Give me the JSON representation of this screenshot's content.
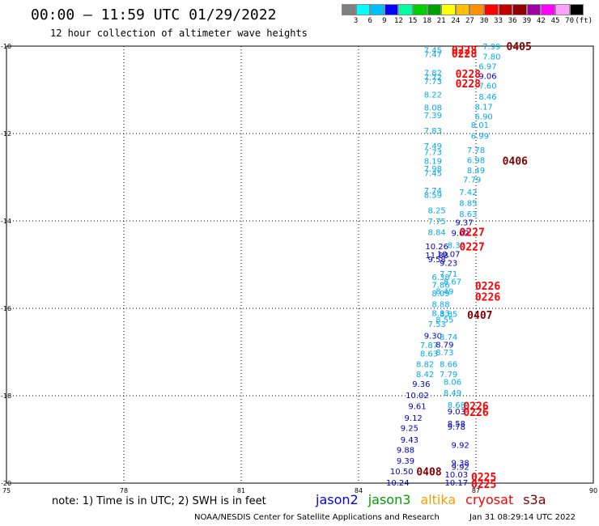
{
  "title": "00:00 – 11:59 UTC 01/29/2022",
  "subtitle": "12 hour collection of altimeter wave heights",
  "colorbar": {
    "colors": [
      "#808080",
      "#00ffff",
      "#00bfff",
      "#0000ff",
      "#00ffa0",
      "#00d000",
      "#00a000",
      "#ffff00",
      "#ffc000",
      "#ff9000",
      "#ff0000",
      "#c00000",
      "#900000",
      "#a000a0",
      "#ff00ff",
      "#ffa0ff",
      "#000000"
    ],
    "labels": [
      "3",
      "6",
      "9",
      "12",
      "15",
      "18",
      "21",
      "24",
      "27",
      "30",
      "33",
      "36",
      "39",
      "42",
      "45",
      "70",
      "(ft)"
    ]
  },
  "map_frame": {
    "lon_min": 75,
    "lon_max": 90,
    "lat_min": -20,
    "lat_max": -10
  },
  "axes": {
    "lon_ticks": [
      "75",
      "78",
      "81",
      "84",
      "87",
      "90"
    ],
    "lat_ticks": [
      "-10",
      "-12",
      "-14",
      "-16",
      "-18",
      "-20"
    ]
  },
  "chart_data": {
    "type": "map",
    "units": "ft",
    "satellite_colors": {
      "jason2": "#0000ff",
      "jason3": "#00a000",
      "altika": "#ff9900",
      "cryosat": "#ff0000",
      "s3a": "#800000",
      "track_cyan": "#00aaee",
      "track_blue": "#0000cc",
      "track_darkblue": "#000090"
    },
    "observations": [
      {
        "text": "7.99",
        "lon": 87.4,
        "lat": -10.0,
        "color": "#00aaee"
      },
      {
        "text": "7.45",
        "lon": 85.9,
        "lat": -10.08,
        "color": "#00aaee"
      },
      {
        "text": "7.47",
        "lon": 85.9,
        "lat": -10.18,
        "color": "#00aaee"
      },
      {
        "text": "7.80",
        "lon": 87.4,
        "lat": -10.23,
        "color": "#00aaee"
      },
      {
        "text": "6.97",
        "lon": 87.3,
        "lat": -10.45,
        "color": "#00aaee"
      },
      {
        "text": "7.82",
        "lon": 85.9,
        "lat": -10.6,
        "color": "#00aaee"
      },
      {
        "text": "9.06",
        "lon": 87.3,
        "lat": -10.68,
        "color": "#0000cc"
      },
      {
        "text": "7.72",
        "lon": 85.9,
        "lat": -10.7,
        "color": "#00aaee"
      },
      {
        "text": "7.73",
        "lon": 85.9,
        "lat": -10.8,
        "color": "#00aaee"
      },
      {
        "text": "7.60",
        "lon": 87.3,
        "lat": -10.9,
        "color": "#00aaee"
      },
      {
        "text": "8.22",
        "lon": 85.9,
        "lat": -11.1,
        "color": "#00aaee"
      },
      {
        "text": "8.46",
        "lon": 87.3,
        "lat": -11.15,
        "color": "#00aaee"
      },
      {
        "text": "8.08",
        "lon": 85.9,
        "lat": -11.4,
        "color": "#00aaee"
      },
      {
        "text": "8.17",
        "lon": 87.2,
        "lat": -11.38,
        "color": "#00aaee"
      },
      {
        "text": "7.39",
        "lon": 85.9,
        "lat": -11.57,
        "color": "#00aaee"
      },
      {
        "text": "6.90",
        "lon": 87.2,
        "lat": -11.6,
        "color": "#00aaee"
      },
      {
        "text": "8.01",
        "lon": 87.1,
        "lat": -11.8,
        "color": "#00aaee"
      },
      {
        "text": "7.83",
        "lon": 85.9,
        "lat": -11.93,
        "color": "#00aaee"
      },
      {
        "text": "6.99",
        "lon": 87.1,
        "lat": -12.05,
        "color": "#00aaee"
      },
      {
        "text": "7.49",
        "lon": 85.9,
        "lat": -12.28,
        "color": "#00aaee"
      },
      {
        "text": "7.78",
        "lon": 87.0,
        "lat": -12.37,
        "color": "#00aaee"
      },
      {
        "text": "7.73",
        "lon": 85.9,
        "lat": -12.42,
        "color": "#00aaee"
      },
      {
        "text": "8.19",
        "lon": 85.9,
        "lat": -12.62,
        "color": "#00aaee"
      },
      {
        "text": "6.98",
        "lon": 87.0,
        "lat": -12.6,
        "color": "#00aaee"
      },
      {
        "text": "7.98",
        "lon": 85.9,
        "lat": -12.8,
        "color": "#00aaee"
      },
      {
        "text": "8.49",
        "lon": 87.0,
        "lat": -12.83,
        "color": "#00aaee"
      },
      {
        "text": "7.45",
        "lon": 85.9,
        "lat": -12.9,
        "color": "#00aaee"
      },
      {
        "text": "7.79",
        "lon": 86.9,
        "lat": -13.05,
        "color": "#00aaee"
      },
      {
        "text": "7.74",
        "lon": 85.9,
        "lat": -13.3,
        "color": "#00aaee"
      },
      {
        "text": "7.42",
        "lon": 86.8,
        "lat": -13.33,
        "color": "#00aaee"
      },
      {
        "text": "8.59",
        "lon": 85.9,
        "lat": -13.4,
        "color": "#00aaee"
      },
      {
        "text": "8.85",
        "lon": 86.8,
        "lat": -13.58,
        "color": "#00aaee"
      },
      {
        "text": "8.25",
        "lon": 86.0,
        "lat": -13.75,
        "color": "#00aaee"
      },
      {
        "text": "8.63",
        "lon": 86.8,
        "lat": -13.83,
        "color": "#00aaee"
      },
      {
        "text": "7.75",
        "lon": 86.0,
        "lat": -14.0,
        "color": "#00aaee"
      },
      {
        "text": "9.37",
        "lon": 86.7,
        "lat": -14.03,
        "color": "#0000cc"
      },
      {
        "text": "8.84",
        "lon": 86.0,
        "lat": -14.25,
        "color": "#00aaee"
      },
      {
        "text": "9.02",
        "lon": 86.6,
        "lat": -14.27,
        "color": "#0000cc"
      },
      {
        "text": "10.26",
        "lon": 86.0,
        "lat": -14.57,
        "color": "#0000cc"
      },
      {
        "text": "8.35",
        "lon": 86.5,
        "lat": -14.55,
        "color": "#00aaee"
      },
      {
        "text": "10.07",
        "lon": 86.3,
        "lat": -14.75,
        "color": "#0000cc"
      },
      {
        "text": "11.88",
        "lon": 86.0,
        "lat": -14.78,
        "color": "#0000cc"
      },
      {
        "text": "9.58",
        "lon": 86.0,
        "lat": -14.87,
        "color": "#0000cc"
      },
      {
        "text": "9.23",
        "lon": 86.3,
        "lat": -14.95,
        "color": "#0000cc"
      },
      {
        "text": "7.71",
        "lon": 86.3,
        "lat": -15.2,
        "color": "#00aaee"
      },
      {
        "text": "6.38",
        "lon": 86.1,
        "lat": -15.28,
        "color": "#00aaee"
      },
      {
        "text": "8.67",
        "lon": 86.4,
        "lat": -15.38,
        "color": "#00aaee"
      },
      {
        "text": "7.86",
        "lon": 86.1,
        "lat": -15.45,
        "color": "#00aaee"
      },
      {
        "text": "8.49",
        "lon": 86.2,
        "lat": -15.6,
        "color": "#00aaee"
      },
      {
        "text": "8.09",
        "lon": 86.1,
        "lat": -15.65,
        "color": "#00aaee"
      },
      {
        "text": "8.88",
        "lon": 86.1,
        "lat": -15.9,
        "color": "#00aaee"
      },
      {
        "text": "8.33",
        "lon": 86.1,
        "lat": -16.1,
        "color": "#00aaee"
      },
      {
        "text": "8.85",
        "lon": 86.3,
        "lat": -16.12,
        "color": "#00aaee"
      },
      {
        "text": "8.55",
        "lon": 86.2,
        "lat": -16.25,
        "color": "#00aaee"
      },
      {
        "text": "7.53",
        "lon": 86.0,
        "lat": -16.35,
        "color": "#00aaee"
      },
      {
        "text": "9.30",
        "lon": 85.9,
        "lat": -16.62,
        "color": "#0000cc"
      },
      {
        "text": "8.74",
        "lon": 86.3,
        "lat": -16.65,
        "color": "#00aaee"
      },
      {
        "text": "7.87",
        "lon": 85.8,
        "lat": -16.83,
        "color": "#00aaee"
      },
      {
        "text": "8.79",
        "lon": 86.2,
        "lat": -16.82,
        "color": "#0000cc"
      },
      {
        "text": "8.63",
        "lon": 85.8,
        "lat": -17.03,
        "color": "#00aaee"
      },
      {
        "text": "8.73",
        "lon": 86.2,
        "lat": -17.0,
        "color": "#00aaee"
      },
      {
        "text": "8.82",
        "lon": 85.7,
        "lat": -17.27,
        "color": "#00aaee"
      },
      {
        "text": "8.66",
        "lon": 86.3,
        "lat": -17.27,
        "color": "#00aaee"
      },
      {
        "text": "8.42",
        "lon": 85.7,
        "lat": -17.5,
        "color": "#00aaee"
      },
      {
        "text": "7.79",
        "lon": 86.3,
        "lat": -17.5,
        "color": "#00aaee"
      },
      {
        "text": "9.36",
        "lon": 85.6,
        "lat": -17.72,
        "color": "#0000cc"
      },
      {
        "text": "8.06",
        "lon": 86.4,
        "lat": -17.68,
        "color": "#00aaee"
      },
      {
        "text": "10.02",
        "lon": 85.5,
        "lat": -17.98,
        "color": "#0000cc"
      },
      {
        "text": "8.49",
        "lon": 86.4,
        "lat": -17.93,
        "color": "#00aaee"
      },
      {
        "text": "9.61",
        "lon": 85.5,
        "lat": -18.23,
        "color": "#0000cc"
      },
      {
        "text": "8.68",
        "lon": 86.5,
        "lat": -18.2,
        "color": "#00aaee"
      },
      {
        "text": "9.03",
        "lon": 86.5,
        "lat": -18.35,
        "color": "#0000cc"
      },
      {
        "text": "9.12",
        "lon": 85.4,
        "lat": -18.5,
        "color": "#0000cc"
      },
      {
        "text": "8.58",
        "lon": 86.5,
        "lat": -18.63,
        "color": "#0000cc"
      },
      {
        "text": "9.78",
        "lon": 86.5,
        "lat": -18.7,
        "color": "#0000cc"
      },
      {
        "text": "9.25",
        "lon": 85.3,
        "lat": -18.73,
        "color": "#0000cc"
      },
      {
        "text": "9.43",
        "lon": 85.3,
        "lat": -19.0,
        "color": "#0000cc"
      },
      {
        "text": "9.92",
        "lon": 86.6,
        "lat": -19.12,
        "color": "#0000cc"
      },
      {
        "text": "9.88",
        "lon": 85.2,
        "lat": -19.23,
        "color": "#0000cc"
      },
      {
        "text": "9.39",
        "lon": 85.2,
        "lat": -19.48,
        "color": "#0000cc"
      },
      {
        "text": "9.38",
        "lon": 86.6,
        "lat": -19.53,
        "color": "#0000cc"
      },
      {
        "text": "9.92",
        "lon": 86.6,
        "lat": -19.62,
        "color": "#0000cc"
      },
      {
        "text": "10.50",
        "lon": 85.1,
        "lat": -19.72,
        "color": "#0000cc"
      },
      {
        "text": "10.03",
        "lon": 86.5,
        "lat": -19.8,
        "color": "#0000cc"
      },
      {
        "text": "10.24",
        "lon": 85.0,
        "lat": -19.98,
        "color": "#0000cc"
      },
      {
        "text": "10.17",
        "lon": 86.5,
        "lat": -19.98,
        "color": "#0000cc"
      }
    ],
    "cycle_labels": [
      {
        "text": "0405",
        "lon": 88.1,
        "lat": -10.0,
        "color": "#800000"
      },
      {
        "text": "0228",
        "lon": 86.7,
        "lat": -10.08,
        "color": "#ff0000"
      },
      {
        "text": "0228",
        "lon": 86.7,
        "lat": -10.17,
        "color": "#ff0000"
      },
      {
        "text": "0228",
        "lon": 86.8,
        "lat": -10.63,
        "color": "#ff0000"
      },
      {
        "text": "0228",
        "lon": 86.8,
        "lat": -10.85,
        "color": "#ff0000"
      },
      {
        "text": "0406",
        "lon": 88.0,
        "lat": -12.62,
        "color": "#800000"
      },
      {
        "text": "0227",
        "lon": 86.9,
        "lat": -14.25,
        "color": "#ff0000"
      },
      {
        "text": "0227",
        "lon": 86.9,
        "lat": -14.58,
        "color": "#ff0000"
      },
      {
        "text": "0226",
        "lon": 87.3,
        "lat": -15.48,
        "color": "#ff0000"
      },
      {
        "text": "0226",
        "lon": 87.3,
        "lat": -15.73,
        "color": "#ff0000"
      },
      {
        "text": "0407",
        "lon": 87.1,
        "lat": -16.15,
        "color": "#800000"
      },
      {
        "text": "0226",
        "lon": 87.0,
        "lat": -18.23,
        "color": "#ff0000"
      },
      {
        "text": "0226",
        "lon": 87.0,
        "lat": -18.37,
        "color": "#ff0000"
      },
      {
        "text": "0408",
        "lon": 85.8,
        "lat": -19.73,
        "color": "#800000"
      },
      {
        "text": "0225",
        "lon": 87.2,
        "lat": -19.85,
        "color": "#ff0000"
      },
      {
        "text": "0225",
        "lon": 87.2,
        "lat": -20.02,
        "color": "#ff0000"
      }
    ]
  },
  "note": "note: 1) Time is in UTC; 2) SWH is in feet",
  "legend": [
    {
      "label": "jason2",
      "color": "#0000ff"
    },
    {
      "label": "jason3",
      "color": "#00a000"
    },
    {
      "label": "altika",
      "color": "#ff9900"
    },
    {
      "label": "cryosat",
      "color": "#ff0000"
    },
    {
      "label": "s3a",
      "color": "#800000"
    }
  ],
  "footer_left": "NOAA/NESDIS Center for Satellite Applications and Research",
  "footer_right": "Jan 31 08:29:14 UTC 2022"
}
